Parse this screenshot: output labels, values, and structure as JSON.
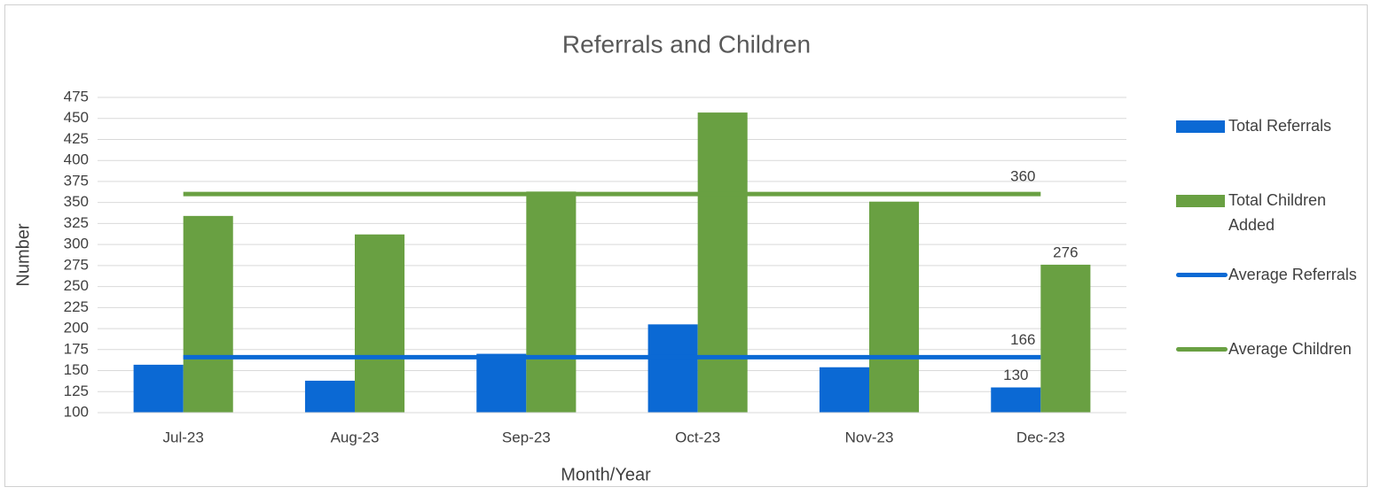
{
  "chart_data": {
    "type": "bar",
    "title": "Referrals and Children",
    "x_label": "Month/Year",
    "y_label": "Number",
    "categories": [
      "Jul-23",
      "Aug-23",
      "Sep-23",
      "Oct-23",
      "Nov-23",
      "Dec-23"
    ],
    "series": [
      {
        "name": "Total Referrals",
        "type": "bar",
        "color": "#0b69d4",
        "values": [
          157,
          138,
          170,
          205,
          154,
          130
        ],
        "value_labels": [
          null,
          null,
          null,
          null,
          null,
          "130"
        ]
      },
      {
        "name": "Total Children Added",
        "type": "bar",
        "color": "#69a042",
        "values": [
          334,
          312,
          363,
          457,
          351,
          276
        ],
        "value_labels": [
          null,
          null,
          null,
          null,
          null,
          "276"
        ]
      },
      {
        "name": "Average Referrals",
        "type": "line",
        "color": "#0b69d4",
        "values": [
          166,
          166,
          166,
          166,
          166,
          166
        ],
        "value_labels": [
          null,
          null,
          null,
          null,
          null,
          "166"
        ]
      },
      {
        "name": "Average Children",
        "type": "line",
        "color": "#69a042",
        "values": [
          360,
          360,
          360,
          360,
          360,
          360
        ],
        "value_labels": [
          null,
          null,
          null,
          null,
          null,
          "360"
        ]
      }
    ],
    "ylim": [
      100,
      475
    ],
    "yticks": [
      100,
      125,
      150,
      175,
      200,
      225,
      250,
      275,
      300,
      325,
      350,
      375,
      400,
      425,
      450,
      475
    ],
    "grid": true,
    "legend": "right"
  }
}
